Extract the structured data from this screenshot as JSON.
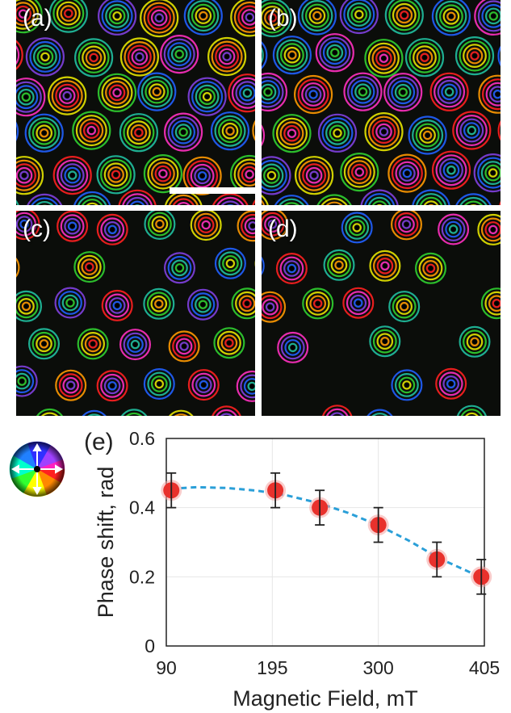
{
  "panels": [
    {
      "id": "a",
      "label": "(a)",
      "density": 1.0
    },
    {
      "id": "b",
      "label": "(b)",
      "density": 0.85
    },
    {
      "id": "c",
      "label": "(c)",
      "density": 0.7
    },
    {
      "id": "d",
      "label": "(d)",
      "density": 0.5
    }
  ],
  "chart_data": {
    "type": "scatter",
    "panel_label": "(e)",
    "xlabel": "Magnetic Field, mT",
    "ylabel": "Phase shift, rad",
    "xlim": [
      90,
      405
    ],
    "ylim": [
      0,
      0.6
    ],
    "xticks": [
      90,
      195,
      300,
      405
    ],
    "yticks": [
      0,
      0.2,
      0.4,
      0.6
    ],
    "ytick_labels": [
      "0",
      "0.2",
      "0.4",
      "0.6"
    ],
    "grid": true,
    "series": [
      {
        "x": [
          95,
          198,
          242,
          300,
          358,
          402
        ],
        "y": [
          0.45,
          0.45,
          0.4,
          0.35,
          0.25,
          0.2
        ],
        "yerr": [
          0.05,
          0.05,
          0.05,
          0.05,
          0.05,
          0.05
        ],
        "color": "#e8312c",
        "errorbar_color": "#222222"
      }
    ],
    "fit_curve": {
      "style": "dashed",
      "color": "#2a9fd8",
      "x": [
        95,
        120,
        150,
        180,
        210,
        240,
        270,
        300,
        330,
        360,
        390,
        402
      ],
      "y": [
        0.455,
        0.459,
        0.457,
        0.449,
        0.435,
        0.414,
        0.385,
        0.349,
        0.305,
        0.254,
        0.214,
        0.196
      ]
    }
  },
  "colors": {
    "marker": "#e8312c",
    "fit": "#2a9fd8",
    "panel_bg": "#0b0d0a",
    "ring_palette": [
      "#ff2020",
      "#ff9900",
      "#e6e600",
      "#30d030",
      "#20c0a0",
      "#2060ff",
      "#8040e0",
      "#ff30c0"
    ]
  }
}
